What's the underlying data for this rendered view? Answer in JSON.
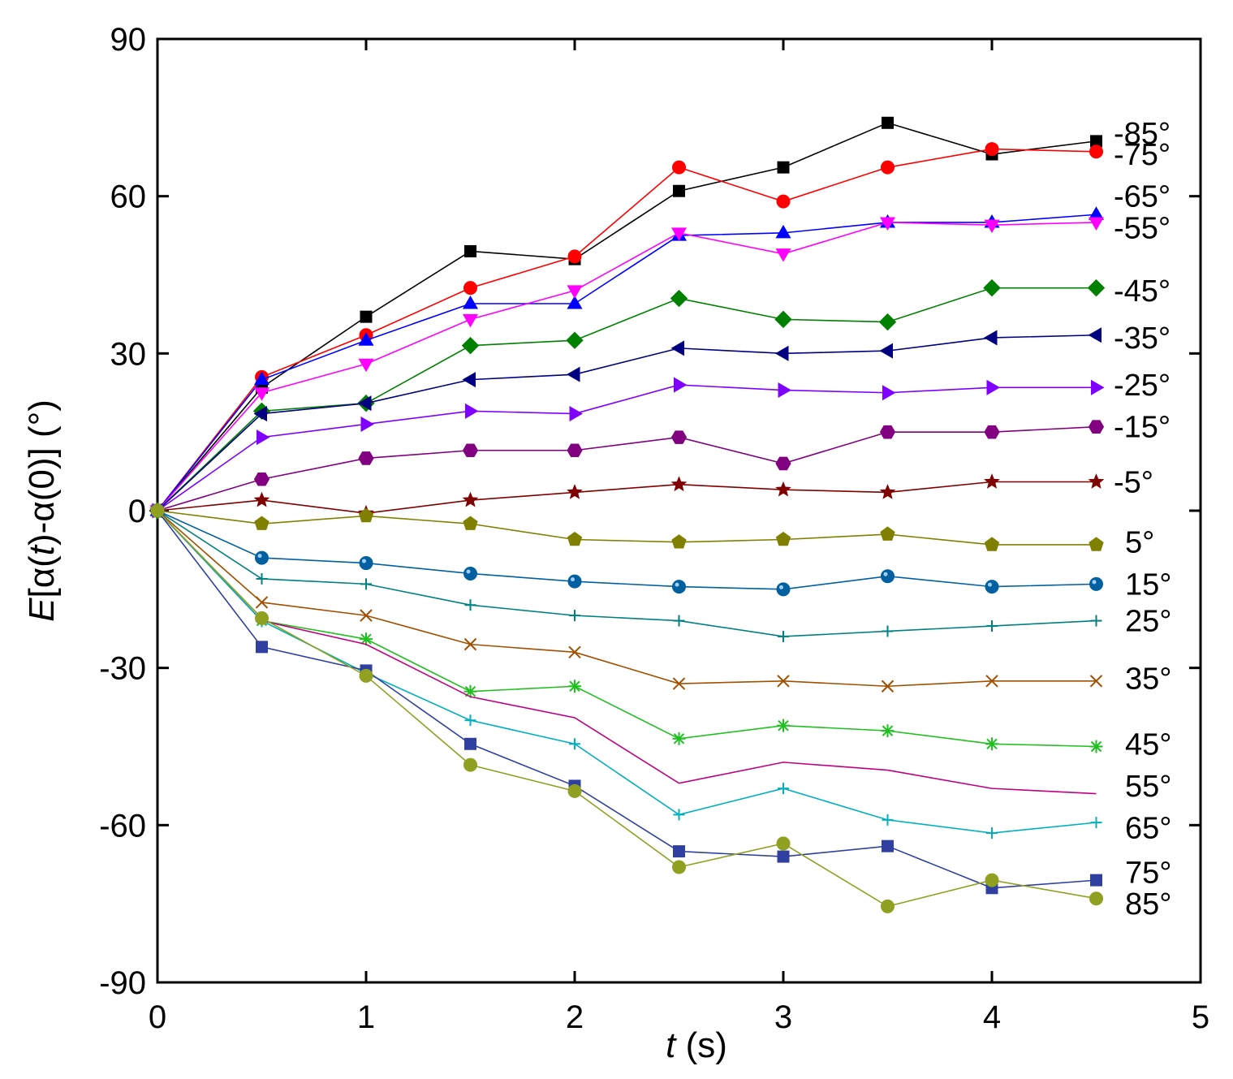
{
  "chart_data": {
    "type": "line",
    "title": "",
    "xlabel_italic": "t",
    "xlabel_rest": " (s)",
    "ylabel_italic": "E",
    "ylabel_a": "[α(",
    "ylabel_b": ")-α(0)] (°)",
    "xlim": [
      0,
      5
    ],
    "ylim": [
      -90,
      90
    ],
    "xticks": [
      "0",
      "1",
      "2",
      "3",
      "4",
      "5"
    ],
    "yticks": [
      "-90",
      "-60",
      "-30",
      "0",
      "30",
      "60",
      "90"
    ],
    "x": [
      0,
      0.5,
      1,
      1.5,
      2,
      2.5,
      3,
      3.5,
      4,
      4.5
    ],
    "series": [
      {
        "name": "-85°",
        "color": "#000000",
        "marker": "square",
        "values": [
          0,
          23.5,
          37,
          49.5,
          48,
          61,
          65.5,
          74,
          68,
          70.5
        ]
      },
      {
        "name": "-75°",
        "color": "#ff0000",
        "marker": "circle",
        "values": [
          0,
          25.5,
          33.5,
          42.5,
          48.5,
          65.5,
          59,
          65.5,
          69,
          68.5
        ]
      },
      {
        "name": "-65°",
        "color": "#0000ff",
        "marker": "triangle-up",
        "values": [
          0,
          25,
          32.5,
          39.5,
          39.5,
          52.5,
          53,
          55,
          55,
          56.5
        ]
      },
      {
        "name": "-55°",
        "color": "#ff00ff",
        "marker": "triangle-down",
        "values": [
          0,
          22.5,
          28,
          36.5,
          42,
          53,
          49,
          55,
          54.5,
          55
        ]
      },
      {
        "name": "-45°",
        "color": "#008000",
        "marker": "diamond",
        "values": [
          0,
          19,
          20.5,
          31.5,
          32.5,
          40.5,
          36.5,
          36,
          42.5,
          42.5
        ]
      },
      {
        "name": "-35°",
        "color": "#000080",
        "marker": "triangle-left",
        "values": [
          0,
          18.5,
          20.5,
          25,
          26,
          31,
          30,
          30.5,
          33,
          33.5
        ]
      },
      {
        "name": "-25°",
        "color": "#8000ff",
        "marker": "triangle-right",
        "values": [
          0,
          14,
          16.5,
          19,
          18.5,
          24,
          23,
          22.5,
          23.5,
          23.5
        ]
      },
      {
        "name": "-15°",
        "color": "#800080",
        "marker": "hexagon",
        "values": [
          0,
          6,
          10,
          11.5,
          11.5,
          14,
          9,
          15,
          15,
          16
        ]
      },
      {
        "name": "-5°",
        "color": "#800000",
        "marker": "star",
        "values": [
          0,
          2,
          -0.5,
          2,
          3.5,
          5,
          4,
          3.5,
          5.5,
          5.5
        ]
      },
      {
        "name": "5°",
        "color": "#808000",
        "marker": "pentagon",
        "values": [
          0,
          -2.5,
          -1,
          -2.5,
          -5.5,
          -6,
          -5.5,
          -4.5,
          -6.5,
          -6.5
        ]
      },
      {
        "name": "15°",
        "color": "#0060a0",
        "marker": "sphere",
        "values": [
          0,
          -9,
          -10,
          -12,
          -13.5,
          -14.5,
          -15,
          -12.5,
          -14.5,
          -14
        ]
      },
      {
        "name": "25°",
        "color": "#008080",
        "marker": "plus",
        "values": [
          0,
          -13,
          -14,
          -18,
          -20,
          -21,
          -24,
          -23,
          -22,
          -21
        ]
      },
      {
        "name": "35°",
        "color": "#a05000",
        "marker": "cross",
        "values": [
          0,
          -17.5,
          -20,
          -25.5,
          -27,
          -33,
          -32.5,
          -33.5,
          -32.5,
          -32.5
        ]
      },
      {
        "name": "45°",
        "color": "#20c020",
        "marker": "asterisk",
        "values": [
          0,
          -21,
          -24.5,
          -34.5,
          -33.5,
          -43.5,
          -41,
          -42,
          -44.5,
          -45
        ]
      },
      {
        "name": "55°",
        "color": "#c00080",
        "marker": "none",
        "values": [
          0,
          -21,
          -25.5,
          -35.5,
          -39.5,
          -52,
          -48,
          -49.5,
          -53,
          -54
        ]
      },
      {
        "name": "65°",
        "color": "#00b0c0",
        "marker": "plus",
        "values": [
          0,
          -21,
          -31,
          -40,
          -44.5,
          -58,
          -53,
          -59,
          -61.5,
          -59.5
        ]
      },
      {
        "name": "75°",
        "color": "#3040a0",
        "marker": "square",
        "values": [
          0,
          -26,
          -30.5,
          -44.5,
          -52.5,
          -65,
          -66,
          -64,
          -72,
          -70.5
        ]
      },
      {
        "name": "85°",
        "color": "#90a020",
        "marker": "circle",
        "values": [
          0,
          -20.5,
          -31.5,
          -48.5,
          -53.5,
          -68,
          -63.5,
          -75.5,
          -70.5,
          -74
        ]
      }
    ],
    "label_values": [
      72,
      68,
      60,
      54,
      42,
      33,
      24,
      16,
      5.5,
      -6,
      -14,
      -21,
      -32,
      -44.5,
      -52.5,
      -60.5,
      -69,
      -75
    ]
  }
}
